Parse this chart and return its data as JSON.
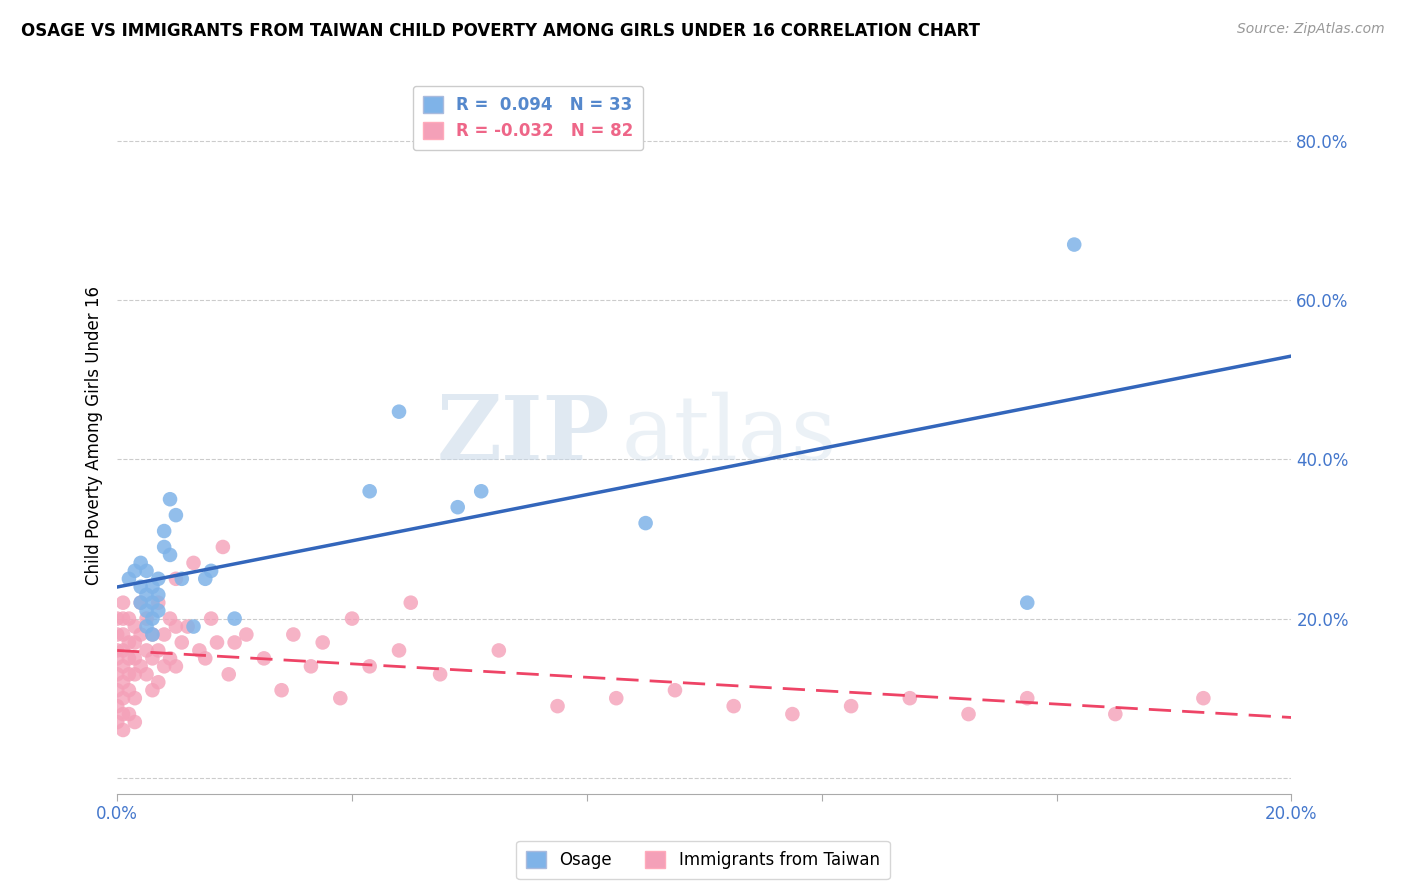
{
  "title": "OSAGE VS IMMIGRANTS FROM TAIWAN CHILD POVERTY AMONG GIRLS UNDER 16 CORRELATION CHART",
  "source": "Source: ZipAtlas.com",
  "ylabel": "Child Poverty Among Girls Under 16",
  "xlim": [
    0.0,
    0.2
  ],
  "ylim": [
    -0.02,
    0.88
  ],
  "watermark_zip": "ZIP",
  "watermark_atlas": "atlas",
  "legend": [
    {
      "label": "R =  0.094   N = 33",
      "color": "#5588cc"
    },
    {
      "label": "R = -0.032   N = 82",
      "color": "#ee6688"
    }
  ],
  "osage_x": [
    0.002,
    0.003,
    0.004,
    0.004,
    0.004,
    0.005,
    0.005,
    0.005,
    0.005,
    0.006,
    0.006,
    0.006,
    0.006,
    0.007,
    0.007,
    0.007,
    0.008,
    0.008,
    0.009,
    0.009,
    0.01,
    0.011,
    0.013,
    0.015,
    0.016,
    0.02,
    0.043,
    0.048,
    0.058,
    0.062,
    0.09,
    0.155,
    0.163
  ],
  "osage_y": [
    0.25,
    0.26,
    0.24,
    0.27,
    0.22,
    0.26,
    0.23,
    0.21,
    0.19,
    0.24,
    0.22,
    0.2,
    0.18,
    0.25,
    0.23,
    0.21,
    0.31,
    0.29,
    0.35,
    0.28,
    0.33,
    0.25,
    0.19,
    0.25,
    0.26,
    0.2,
    0.36,
    0.46,
    0.34,
    0.36,
    0.32,
    0.22,
    0.67
  ],
  "taiwan_x": [
    0.0,
    0.0,
    0.0,
    0.0,
    0.0,
    0.0,
    0.0,
    0.0,
    0.001,
    0.001,
    0.001,
    0.001,
    0.001,
    0.001,
    0.001,
    0.001,
    0.001,
    0.002,
    0.002,
    0.002,
    0.002,
    0.002,
    0.002,
    0.003,
    0.003,
    0.003,
    0.003,
    0.003,
    0.003,
    0.004,
    0.004,
    0.004,
    0.005,
    0.005,
    0.005,
    0.006,
    0.006,
    0.006,
    0.007,
    0.007,
    0.007,
    0.008,
    0.008,
    0.009,
    0.009,
    0.01,
    0.01,
    0.01,
    0.011,
    0.012,
    0.013,
    0.014,
    0.015,
    0.016,
    0.017,
    0.018,
    0.019,
    0.02,
    0.022,
    0.025,
    0.028,
    0.03,
    0.033,
    0.035,
    0.038,
    0.04,
    0.043,
    0.048,
    0.05,
    0.055,
    0.065,
    0.075,
    0.085,
    0.095,
    0.105,
    0.115,
    0.125,
    0.135,
    0.145,
    0.155,
    0.17,
    0.185
  ],
  "taiwan_y": [
    0.2,
    0.18,
    0.16,
    0.15,
    0.13,
    0.11,
    0.09,
    0.07,
    0.22,
    0.2,
    0.18,
    0.16,
    0.14,
    0.12,
    0.1,
    0.08,
    0.06,
    0.2,
    0.17,
    0.15,
    0.13,
    0.11,
    0.08,
    0.19,
    0.17,
    0.15,
    0.13,
    0.1,
    0.07,
    0.22,
    0.18,
    0.14,
    0.2,
    0.16,
    0.13,
    0.18,
    0.15,
    0.11,
    0.22,
    0.16,
    0.12,
    0.18,
    0.14,
    0.2,
    0.15,
    0.25,
    0.19,
    0.14,
    0.17,
    0.19,
    0.27,
    0.16,
    0.15,
    0.2,
    0.17,
    0.29,
    0.13,
    0.17,
    0.18,
    0.15,
    0.11,
    0.18,
    0.14,
    0.17,
    0.1,
    0.2,
    0.14,
    0.16,
    0.22,
    0.13,
    0.16,
    0.09,
    0.1,
    0.11,
    0.09,
    0.08,
    0.09,
    0.1,
    0.08,
    0.1,
    0.08,
    0.1
  ],
  "osage_color": "#7fb3e8",
  "taiwan_color": "#f4a0b8",
  "osage_line_color": "#3366bb",
  "taiwan_line_color": "#ee4466",
  "background_color": "#ffffff",
  "grid_color": "#cccccc",
  "ytick_color": "#4477cc",
  "xtick_color": "#4477cc"
}
